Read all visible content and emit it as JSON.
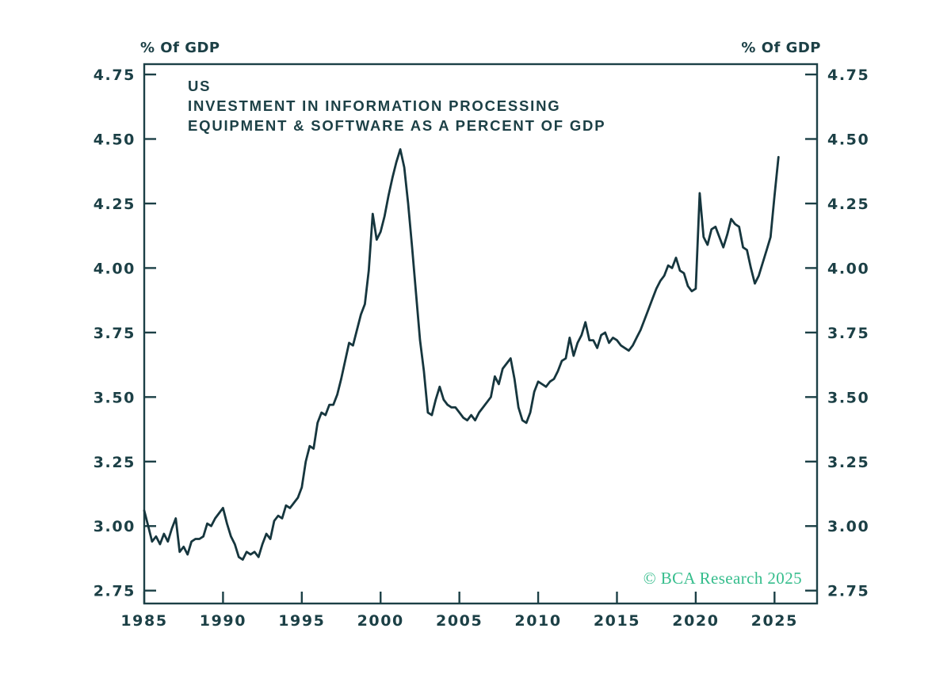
{
  "page": {
    "background": "#ffffff"
  },
  "colors": {
    "ink": "#1c4046",
    "line": "#16363e",
    "watermark_green": "#35bd8c"
  },
  "chart_data": {
    "type": "line",
    "title_lines": [
      "US",
      "INVESTMENT IN INFORMATION PROCESSING",
      "EQUIPMENT & SOFTWARE AS A PERCENT OF GDP"
    ],
    "unit_label_left": "% Of GDP",
    "unit_label_right": "% Of GDP",
    "watermark": "© BCA Research 2025",
    "grid": false,
    "legend": false,
    "xlim": [
      1985,
      2027.7
    ],
    "ylim": [
      2.7,
      4.79
    ],
    "x_ticks": [
      1985,
      1990,
      1995,
      2000,
      2005,
      2010,
      2015,
      2020,
      2025
    ],
    "y_ticks": [
      2.75,
      3.0,
      3.25,
      3.5,
      3.75,
      4.0,
      4.25,
      4.5,
      4.75
    ],
    "series": [
      {
        "name": "US investment in information processing equipment & software as a percent of GDP",
        "frequency": "quarterly",
        "x_start": 1985,
        "x_step_years": 0.25,
        "values": [
          3.06,
          3.0,
          2.94,
          2.96,
          2.93,
          2.97,
          2.94,
          2.99,
          3.03,
          2.9,
          2.92,
          2.89,
          2.94,
          2.95,
          2.95,
          2.96,
          3.01,
          3.0,
          3.03,
          3.05,
          3.07,
          3.01,
          2.96,
          2.93,
          2.88,
          2.87,
          2.9,
          2.89,
          2.9,
          2.88,
          2.93,
          2.97,
          2.95,
          3.02,
          3.04,
          3.03,
          3.08,
          3.07,
          3.09,
          3.11,
          3.15,
          3.25,
          3.31,
          3.3,
          3.4,
          3.44,
          3.43,
          3.47,
          3.47,
          3.51,
          3.57,
          3.64,
          3.71,
          3.7,
          3.76,
          3.82,
          3.86,
          3.99,
          4.21,
          4.11,
          4.14,
          4.2,
          4.28,
          4.35,
          4.41,
          4.46,
          4.39,
          4.25,
          4.08,
          3.9,
          3.72,
          3.6,
          3.44,
          3.43,
          3.49,
          3.54,
          3.49,
          3.47,
          3.46,
          3.46,
          3.44,
          3.42,
          3.41,
          3.43,
          3.41,
          3.44,
          3.46,
          3.48,
          3.5,
          3.58,
          3.55,
          3.61,
          3.63,
          3.65,
          3.57,
          3.46,
          3.41,
          3.4,
          3.44,
          3.52,
          3.56,
          3.55,
          3.54,
          3.56,
          3.57,
          3.6,
          3.64,
          3.65,
          3.73,
          3.66,
          3.71,
          3.74,
          3.79,
          3.72,
          3.72,
          3.69,
          3.74,
          3.75,
          3.71,
          3.73,
          3.72,
          3.7,
          3.69,
          3.68,
          3.7,
          3.73,
          3.76,
          3.8,
          3.84,
          3.88,
          3.92,
          3.95,
          3.97,
          4.01,
          4.0,
          4.04,
          3.99,
          3.98,
          3.93,
          3.91,
          3.92,
          4.29,
          4.12,
          4.09,
          4.15,
          4.16,
          4.12,
          4.08,
          4.13,
          4.19,
          4.17,
          4.16,
          4.08,
          4.07,
          4.0,
          3.94,
          3.97,
          4.02,
          4.07,
          4.12,
          4.28,
          4.43
        ]
      }
    ]
  }
}
